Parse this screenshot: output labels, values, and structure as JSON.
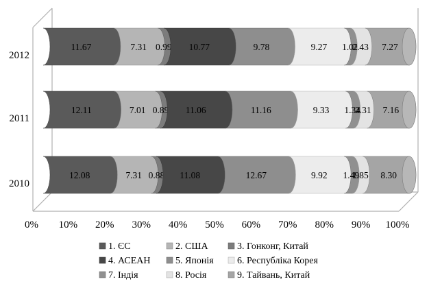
{
  "chart_data": {
    "type": "bar",
    "orientation": "horizontal",
    "stacked": "percent",
    "style": "3d-cylinder",
    "grid": false,
    "legend_position": "bottom",
    "xlim": [
      0,
      100
    ],
    "x_tick_labels": [
      "0%",
      "10%",
      "20%",
      "30%",
      "40%",
      "50%",
      "60%",
      "70%",
      "80%",
      "90%",
      "100%"
    ],
    "categories": [
      "2010",
      "2011",
      "2012"
    ],
    "series": [
      {
        "name": "1. ЄС",
        "color": "#5a5a5a",
        "values": [
          12.08,
          12.11,
          11.67
        ]
      },
      {
        "name": "2. США",
        "color": "#b5b5b5",
        "values": [
          7.31,
          7.01,
          7.31
        ]
      },
      {
        "name": "3. Гонконг, Китай",
        "color": "#7c7c7c",
        "values": [
          0.88,
          0.89,
          0.99
        ]
      },
      {
        "name": "4. АСЕАН",
        "color": "#474747",
        "values": [
          11.08,
          11.06,
          10.77
        ]
      },
      {
        "name": "5. Японія",
        "color": "#8e8e8e",
        "values": [
          12.67,
          11.16,
          9.78
        ]
      },
      {
        "name": "6. Республіка Корея",
        "color": "#ececec",
        "values": [
          9.92,
          9.33,
          9.27
        ]
      },
      {
        "name": "7. Індія",
        "color": "#909090",
        "values": [
          1.49,
          1.34,
          1.02
        ]
      },
      {
        "name": "8. Росія",
        "color": "#e3e3e3",
        "values": [
          1.85,
          2.31,
          2.43
        ]
      },
      {
        "name": "9. Тайвань, Китай",
        "color": "#a5a5a5",
        "values": [
          8.3,
          7.16,
          7.27
        ]
      }
    ]
  }
}
